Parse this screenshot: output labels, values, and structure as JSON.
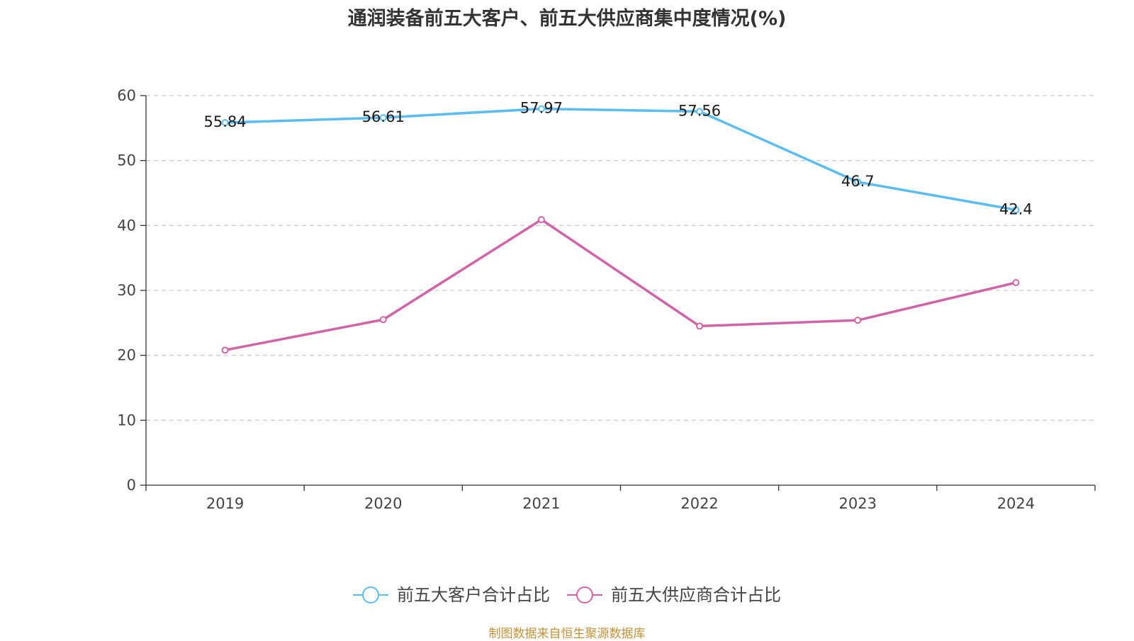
{
  "chart_data": {
    "type": "line",
    "title": "通润装备前五大客户、前五大供应商集中度情况(%)",
    "categories": [
      "2019",
      "2020",
      "2021",
      "2022",
      "2023",
      "2024"
    ],
    "ylim": [
      0,
      60
    ],
    "yticks": [
      0,
      10,
      20,
      30,
      40,
      50,
      60
    ],
    "grid": true,
    "legend_position": "bottom-center",
    "series": [
      {
        "name": "前五大客户合计占比",
        "color": "#5bbcf0",
        "values": [
          55.84,
          56.61,
          57.97,
          57.56,
          46.7,
          42.4
        ],
        "labels": [
          "55.84",
          "56.61",
          "57.97",
          "57.56",
          "46.7",
          "42.4"
        ]
      },
      {
        "name": "前五大供应商合计占比",
        "color": "#d064a8",
        "values": [
          20.8,
          25.5,
          40.9,
          24.5,
          25.4,
          31.2
        ]
      }
    ],
    "source": "制图数据来自恒生聚源数据库"
  }
}
